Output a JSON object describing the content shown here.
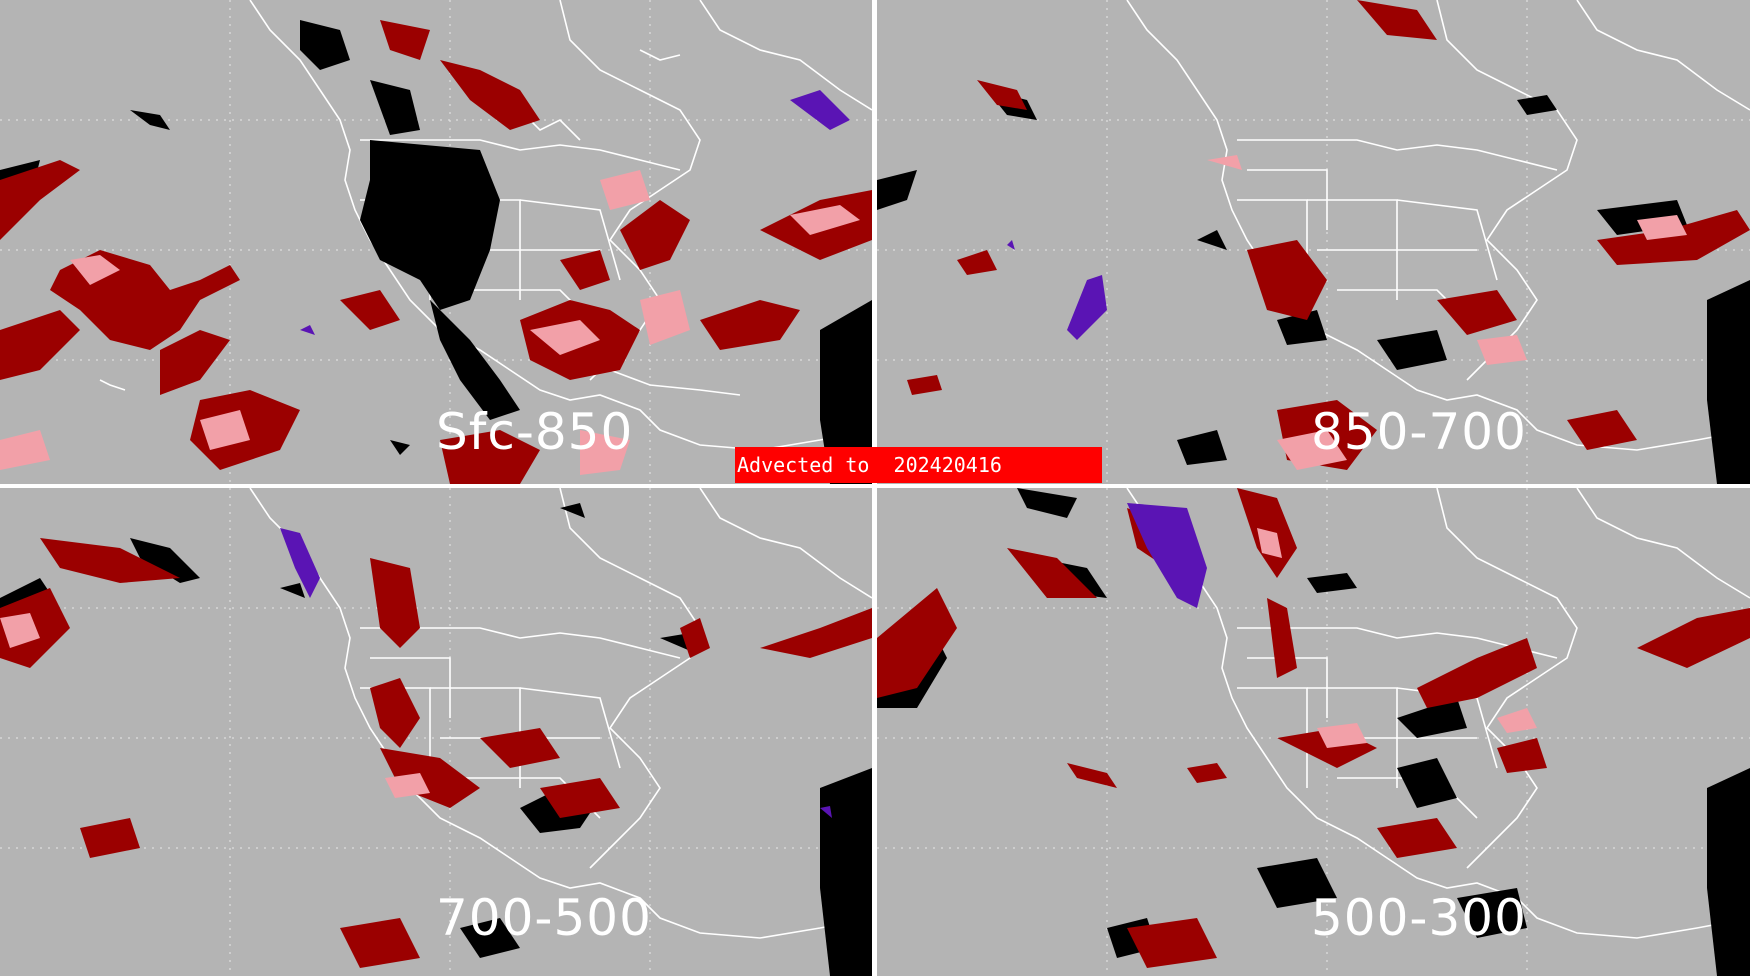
{
  "panels": [
    {
      "id": "sfc-850",
      "label": "Sfc-850"
    },
    {
      "id": "850-700",
      "label": "850-700"
    },
    {
      "id": "700-500",
      "label": "700-500"
    },
    {
      "id": "500-300",
      "label": "500-300"
    }
  ],
  "banner": {
    "text": "Advected to  202420416"
  },
  "colors": {
    "background": "#b4b4b4",
    "divider": "#ffffff",
    "coastline": "#ffffff",
    "dark_red": "#9b0000",
    "pink": "#f2a0a8",
    "black": "#000000",
    "purple": "#5a14b4",
    "banner": "#ff0000"
  }
}
